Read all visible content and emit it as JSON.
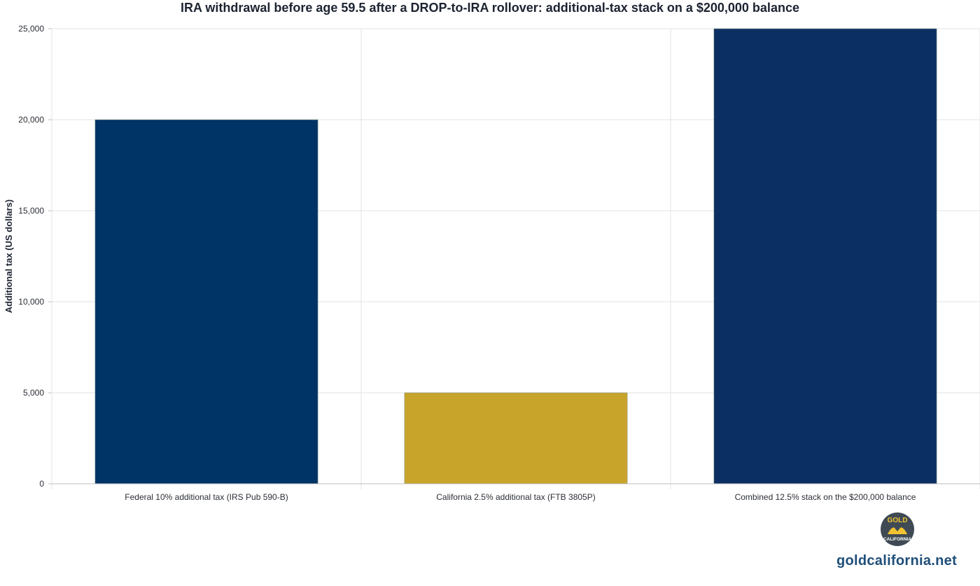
{
  "chart_data": {
    "type": "bar",
    "title": "IRA withdrawal before age 59.5 after a DROP-to-IRA rollover: additional-tax stack on a $200,000 balance",
    "ylabel": "Additional tax (US dollars)",
    "xlabel": "",
    "categories": [
      "Federal 10% additional tax (IRS Pub 590-B)",
      "California 2.5% additional tax (FTB 3805P)",
      "Combined 12.5% stack on the $200,000 balance"
    ],
    "values": [
      20000,
      5000,
      25000
    ],
    "colors": [
      "#003366",
      "#c9a42b",
      "#0c2f63"
    ],
    "ylim": [
      0,
      25000
    ],
    "yticks": [
      0,
      5000,
      10000,
      15000,
      20000,
      25000
    ],
    "ytick_labels": [
      "0",
      "5,000",
      "10,000",
      "15,000",
      "20,000",
      "25,000"
    ],
    "grid": true,
    "legend": "none"
  },
  "brand": {
    "logo_top": "GOLD",
    "logo_bottom": "CALIFORNIA",
    "site": "goldcalifornia.net",
    "logo_bg": "#3f4a55",
    "logo_gold": "#f2c230"
  }
}
